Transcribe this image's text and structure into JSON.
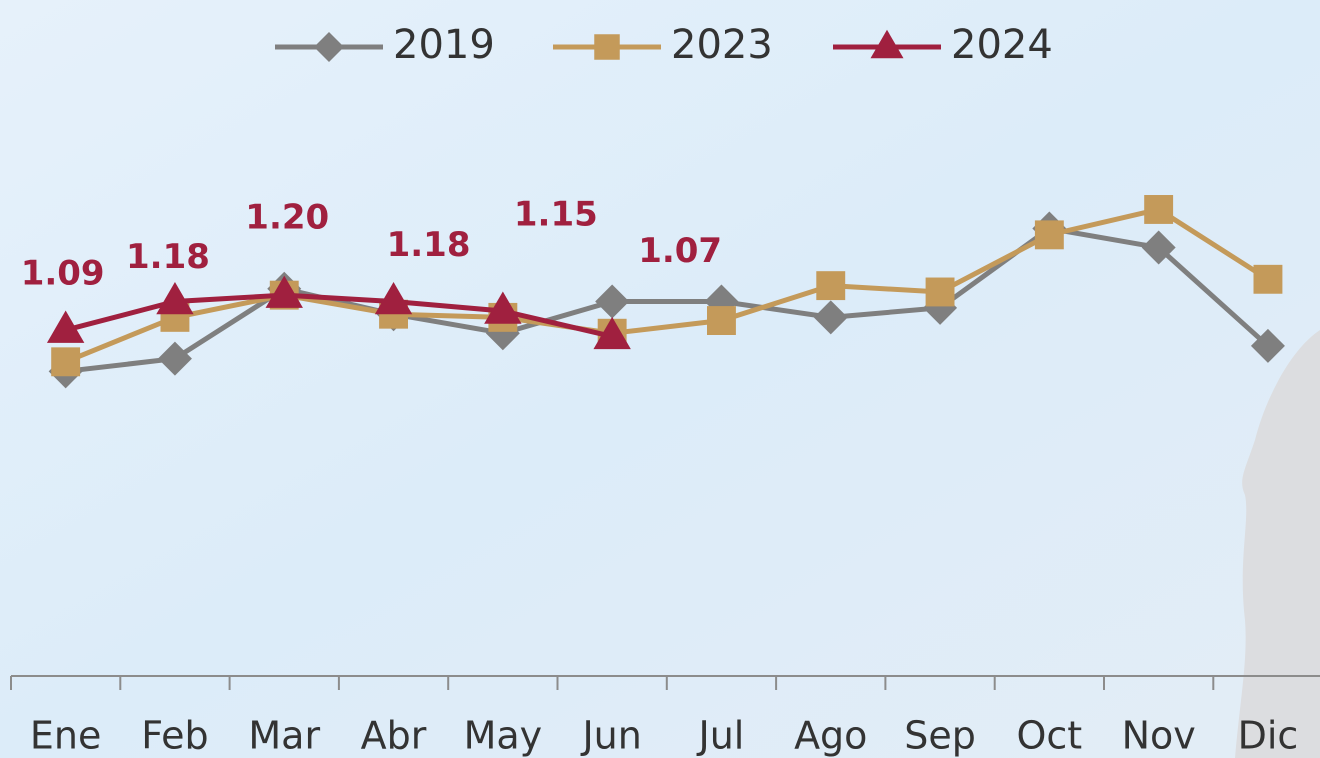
{
  "chart_data": {
    "type": "line",
    "categories": [
      "Ene",
      "Feb",
      "Mar",
      "Abr",
      "May",
      "Jun",
      "Jul",
      "Ago",
      "Sep",
      "Oct",
      "Nov",
      "Dic"
    ],
    "ylim": [
      0,
      2.13
    ],
    "series": [
      {
        "name": "2019",
        "color": "#7f7f7f",
        "marker": "diamond",
        "values": [
          0.96,
          1.0,
          1.22,
          1.14,
          1.08,
          1.18,
          1.18,
          1.13,
          1.16,
          1.41,
          1.35,
          1.04
        ]
      },
      {
        "name": "2023",
        "color": "#c49a5a",
        "marker": "square",
        "values": [
          0.99,
          1.13,
          1.2,
          1.14,
          1.13,
          1.08,
          1.12,
          1.23,
          1.21,
          1.39,
          1.47,
          1.25
        ]
      },
      {
        "name": "2024",
        "color": "#a0203f",
        "marker": "triangle",
        "values": [
          1.09,
          1.18,
          1.2,
          1.18,
          1.15,
          1.07,
          null,
          null,
          null,
          null,
          null,
          null
        ],
        "value_labels": [
          "1.09",
          "1.18",
          "1.20",
          "1.18",
          "1.15",
          "1.07",
          null,
          null,
          null,
          null,
          null,
          null
        ]
      }
    ]
  }
}
